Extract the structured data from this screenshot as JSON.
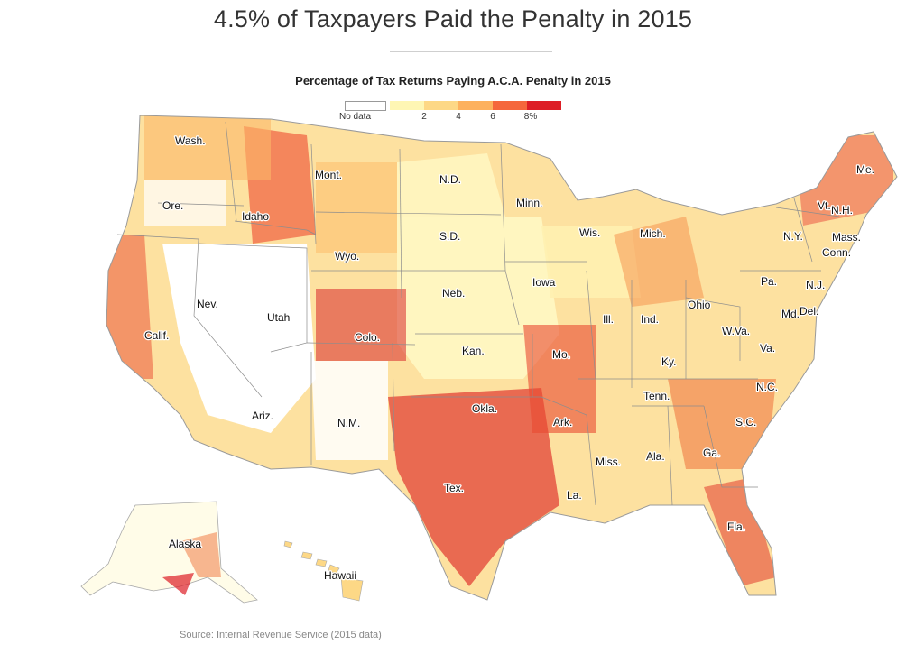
{
  "headline": "4.5% of Taxpayers Paid the Penalty in 2015",
  "map_title": "Percentage of Tax Returns Paying A.C.A. Penalty in 2015",
  "legend": {
    "no_data_label": "No data",
    "ticks": [
      "2",
      "4",
      "6",
      "8%"
    ],
    "colors": [
      "#fef6b4",
      "#fdd886",
      "#fdb15e",
      "#f5673c",
      "#dd1e26"
    ]
  },
  "state_labels": [
    "Wash.",
    "Ore.",
    "Idaho",
    "Mont.",
    "N.D.",
    "Minn.",
    "Wis.",
    "Mich.",
    "Me.",
    "Vt.",
    "N.H.",
    "N.Y.",
    "Mass.",
    "Conn.",
    "S.D.",
    "Wyo.",
    "Nev.",
    "Utah",
    "Calif.",
    "Colo.",
    "Neb.",
    "Iowa",
    "Ill.",
    "Ind.",
    "Ohio",
    "Pa.",
    "N.J.",
    "Md.",
    "Del.",
    "W.Va.",
    "Va.",
    "Ky.",
    "Kan.",
    "Mo.",
    "Ariz.",
    "N.M.",
    "Okla.",
    "Ark.",
    "Tenn.",
    "N.C.",
    "S.C.",
    "Ga.",
    "Ala.",
    "Miss.",
    "La.",
    "Tex.",
    "Fla.",
    "Alaska",
    "Hawaii"
  ],
  "source": "Source: Internal Revenue Service (2015 data)"
}
